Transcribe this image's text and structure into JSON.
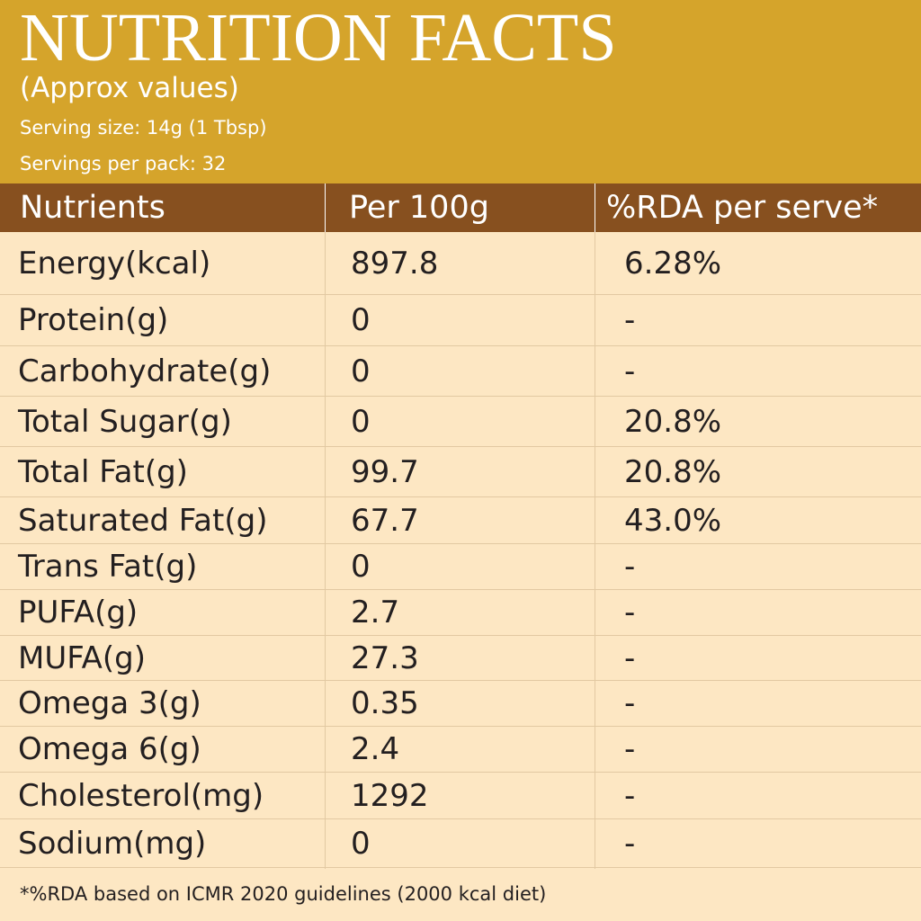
{
  "header": {
    "title": "NUTRITION FACTS",
    "subtitle": "(Approx values)",
    "serving_size": "Serving size: 14g (1 Tbsp)",
    "servings_per_pack": "Servings per pack: 32"
  },
  "table": {
    "columns": [
      "Nutrients",
      "Per 100g",
      "%RDA per serve*"
    ],
    "rows": [
      {
        "nutrient": "Energy(kcal)",
        "per100g": "897.8",
        "rda": "6.28%"
      },
      {
        "nutrient": "Protein(g)",
        "per100g": "0",
        "rda": "-"
      },
      {
        "nutrient": "Carbohydrate(g)",
        "per100g": "0",
        "rda": "-"
      },
      {
        "nutrient": "Total Sugar(g)",
        "per100g": "0",
        "rda": "20.8%"
      },
      {
        "nutrient": "Total Fat(g)",
        "per100g": "99.7",
        "rda": "20.8%"
      },
      {
        "nutrient": "Saturated Fat(g)",
        "per100g": "67.7",
        "rda": "43.0%"
      },
      {
        "nutrient": "Trans Fat(g)",
        "per100g": "0",
        "rda": "-"
      },
      {
        "nutrient": "PUFA(g)",
        "per100g": "2.7",
        "rda": "-"
      },
      {
        "nutrient": "MUFA(g)",
        "per100g": "27.3",
        "rda": "-"
      },
      {
        "nutrient": "Omega 3(g)",
        "per100g": "0.35",
        "rda": "-"
      },
      {
        "nutrient": "Omega 6(g)",
        "per100g": "2.4",
        "rda": "-"
      },
      {
        "nutrient": "Cholesterol(mg)",
        "per100g": "1292",
        "rda": "-"
      },
      {
        "nutrient": "Sodium(mg)",
        "per100g": "0",
        "rda": "-"
      }
    ]
  },
  "footnote": "*%RDA based on ICMR 2020 guidelines (2000 kcal diet)",
  "colors": {
    "header_bg": "#d5a42b",
    "table_header_bg": "#87501f",
    "body_bg": "#fde7c3",
    "text": "#231f20"
  }
}
